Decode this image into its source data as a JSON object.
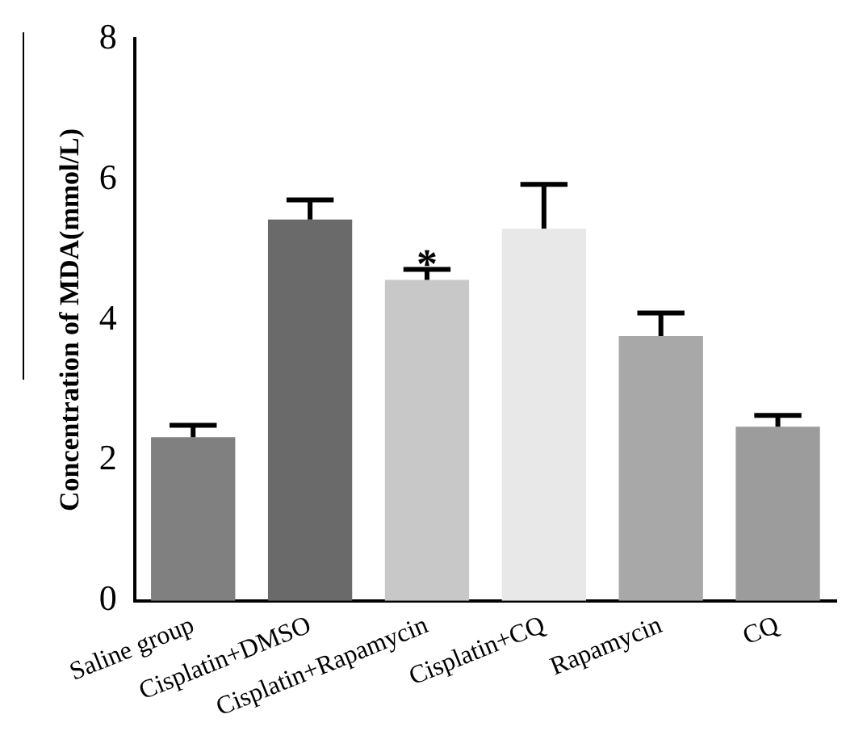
{
  "chart_data": {
    "type": "bar",
    "ylabel": "Concentration of MDA(mmol/L)",
    "categories": [
      "Saline group",
      "Cisplatin+DMSO",
      "Cisplatin+Rapamycin",
      "Cisplatin+CQ",
      "Rapamycin",
      "CQ"
    ],
    "values": [
      2.33,
      5.43,
      4.57,
      5.3,
      3.77,
      2.48
    ],
    "colors": [
      "#808080",
      "#6a6a6a",
      "#c8c8c8",
      "#e8e8e8",
      "#a8a8a8",
      "#9c9c9c"
    ],
    "errors": [
      [
        2.33,
        2.5
      ],
      [
        5.43,
        5.71
      ],
      [
        4.57,
        4.72
      ],
      [
        5.3,
        5.93
      ],
      [
        3.77,
        4.1
      ],
      [
        2.48,
        2.64
      ]
    ],
    "ylim": [
      0,
      8
    ],
    "yticks": [
      0,
      2,
      4,
      6,
      8
    ],
    "grid": false,
    "legend": false,
    "annotations": [
      {
        "text": "*",
        "x": "Cisplatin+Rapamycin",
        "y": 4.85
      }
    ]
  }
}
